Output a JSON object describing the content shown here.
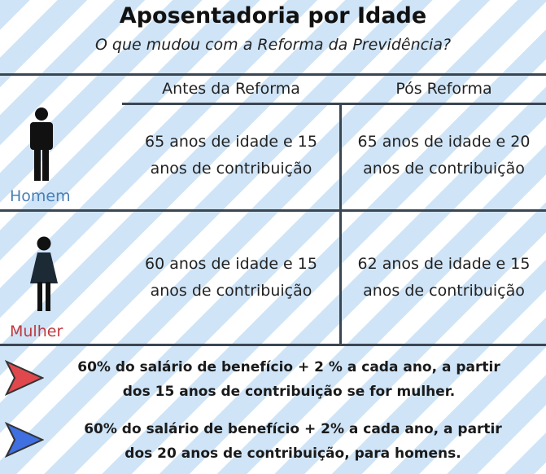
{
  "title": "Aposentadoria por Idade",
  "subtitle": "O que mudou com a Reforma da Previdência?",
  "table": {
    "headers": [
      "Antes da Reforma",
      "Pós Reforma"
    ],
    "rows": [
      {
        "label": "Homem",
        "label_color": "#4a7fb5",
        "icon": "man-icon",
        "before": [
          "65 anos de idade e 15",
          "anos de contribuição"
        ],
        "after": [
          "65 anos de idade e 20",
          "anos de contribuição"
        ]
      },
      {
        "label": "Mulher",
        "label_color": "#c0393f",
        "icon": "woman-icon",
        "before": [
          "60 anos de idade e 15",
          "anos de contribuição"
        ],
        "after": [
          "62 anos de idade e 15",
          "anos de contribuição"
        ]
      }
    ]
  },
  "notes": [
    {
      "color": "#e0484e",
      "lines": [
        "60% do salário de benefício + 2 % a cada ano, a partir",
        "dos 15 anos de contribuição se for mulher."
      ]
    },
    {
      "color": "#3f6fe0",
      "lines": [
        "60% do salário de benefício + 2% a cada ano, a partir",
        "dos 20 anos de contribuição, para homens."
      ]
    }
  ]
}
